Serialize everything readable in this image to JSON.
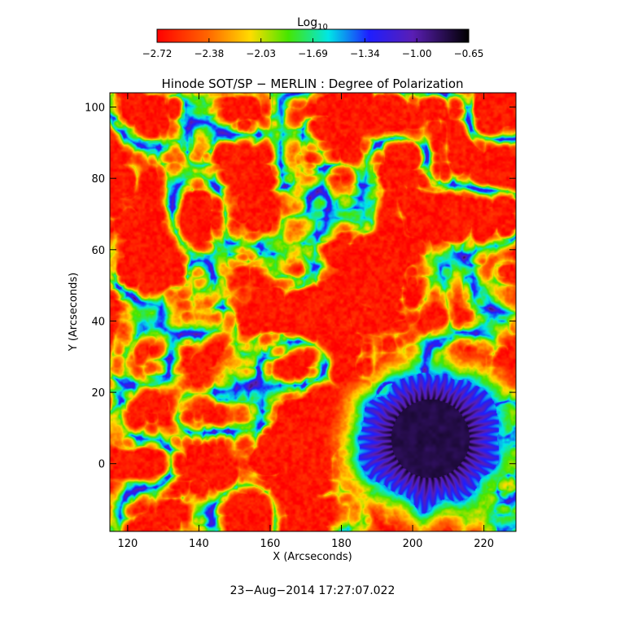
{
  "chart_data": {
    "type": "heatmap",
    "title": "Hinode SOT/SP − MERLIN : Degree of Polarization",
    "xlabel": "X (Arcseconds)",
    "ylabel": "Y (Arcseconds)",
    "xlim": [
      115,
      229
    ],
    "ylim": [
      -19,
      104
    ],
    "x_ticks": [
      120,
      140,
      160,
      180,
      200,
      220
    ],
    "y_ticks": [
      0,
      20,
      40,
      60,
      80,
      100
    ],
    "colorbar": {
      "label_base": "Log",
      "label_sub": "10",
      "range": [
        -2.72,
        -0.65
      ],
      "tick_labels": [
        "−2.72",
        "−2.38",
        "−2.03",
        "−1.69",
        "−1.34",
        "−1.00",
        "−0.65"
      ],
      "colormap": "rainbow (red → yellow → green → cyan → blue → black)"
    },
    "features": {
      "sunspot_center": [
        205,
        7
      ],
      "sunspot_umbra_radius_arcsec": 11,
      "sunspot_penumbra_radius_arcsec": 20,
      "network_level": -1.3,
      "background_level": -2.6
    },
    "timestamp": "23−Aug−2014 17:27:07.022"
  }
}
